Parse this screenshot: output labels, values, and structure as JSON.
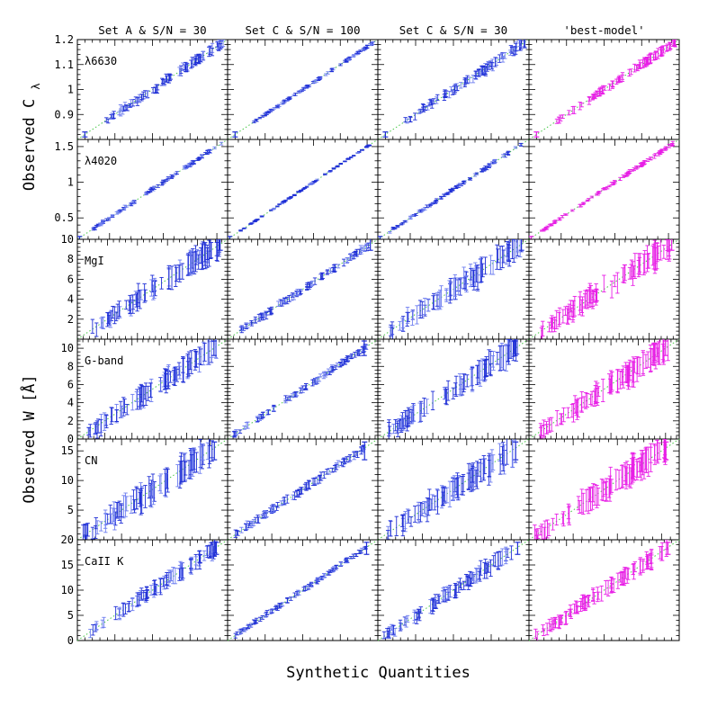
{
  "figure": {
    "column_titles": [
      "Set A & S/N = 30",
      "Set C & S/N = 100",
      "Set C & S/N = 30",
      "'best-model'"
    ],
    "xlabel": "Synthetic Quantities",
    "ylabel_top_main": "Observed C",
    "ylabel_top_sub": "λ",
    "ylabel_bottom": "Observed W [Å]",
    "colors": {
      "sets": "#1f2fd6",
      "best_model": "#e81ee6",
      "one_to_one": "#46c846"
    }
  },
  "chart_data": {
    "type": "scatter",
    "description_of_errorbars": "each point drawn with vertical error bar",
    "columns": [
      "Set A & S/N = 30",
      "Set C & S/N = 100",
      "Set C & S/N = 30",
      "'best-model'"
    ],
    "column_colors": [
      "#1f2fd6",
      "#1f2fd6",
      "#1f2fd6",
      "#e81ee6"
    ],
    "one_to_one_line": true,
    "rows": [
      {
        "name": "λ6630",
        "ylim": [
          0.8,
          1.2
        ],
        "yticks": [
          0.9,
          1,
          1.1,
          1.2
        ],
        "ytick_labels": [
          "0.9",
          "1",
          "1.1",
          "1.2"
        ],
        "x_range": [
          0.87,
          1.19
        ],
        "yerr": [
          0.012,
          0.004,
          0.012,
          0.012
        ],
        "scatter": [
          0.012,
          0.003,
          0.014,
          0.006
        ],
        "outlier": {
          "x": 0.82,
          "y": 0.82,
          "err": 0.01
        }
      },
      {
        "name": "λ4020",
        "ylim": [
          0.2,
          1.6
        ],
        "yticks": [
          0.5,
          1,
          1.5
        ],
        "ytick_labels": [
          "0.5",
          "1",
          "1.5"
        ],
        "x_range": [
          0.3,
          1.55
        ],
        "yerr": [
          0.015,
          0.006,
          0.015,
          0.015
        ],
        "scatter": [
          0.02,
          0.008,
          0.02,
          0.015
        ],
        "outlier": {
          "x": 0.22,
          "y": 0.22,
          "err": 0.02
        }
      },
      {
        "name": "MgI",
        "ylim": [
          0,
          10
        ],
        "yticks": [
          2,
          4,
          6,
          8,
          10
        ],
        "ytick_labels": [
          "2",
          "4",
          "6",
          "8",
          "10"
        ],
        "x_range": [
          0.8,
          9.5
        ],
        "yerr": [
          0.8,
          0.25,
          0.8,
          0.8
        ],
        "scatter": [
          0.5,
          0.2,
          0.6,
          0.5
        ],
        "outlier": {
          "x": 9.5,
          "y": 9.6,
          "err": 0.7
        }
      },
      {
        "name": "G-band",
        "ylim": [
          0,
          11
        ],
        "yticks": [
          0,
          2,
          4,
          6,
          8,
          10
        ],
        "ytick_labels": [
          "0",
          "2",
          "4",
          "6",
          "8",
          "10"
        ],
        "x_range": [
          0.4,
          10.2
        ],
        "yerr": [
          0.9,
          0.25,
          0.9,
          0.9
        ],
        "scatter": [
          0.5,
          0.2,
          0.6,
          0.5
        ],
        "outlier": {
          "x": 10.0,
          "y": 10.0,
          "err": 0.8
        }
      },
      {
        "name": "CN",
        "ylim": [
          0,
          17
        ],
        "yticks": [
          5,
          10,
          15
        ],
        "ytick_labels": [
          "5",
          "10",
          "15"
        ],
        "x_range": [
          0.5,
          15.5
        ],
        "yerr": [
          1.6,
          0.5,
          1.6,
          1.6
        ],
        "scatter": [
          1.0,
          0.3,
          1.1,
          1.0
        ],
        "outlier": {
          "x": 15.5,
          "y": 15.0,
          "err": 1.5
        }
      },
      {
        "name": "CaII K",
        "ylim": [
          0,
          20
        ],
        "yticks": [
          0,
          5,
          10,
          15,
          20
        ],
        "ytick_labels": [
          "0",
          "5",
          "10",
          "15",
          "20"
        ],
        "x_range": [
          0.8,
          18.5
        ],
        "yerr": [
          1.1,
          0.35,
          1.1,
          1.1
        ],
        "scatter": [
          0.7,
          0.25,
          0.8,
          0.7
        ],
        "outlier": {
          "x": 18.5,
          "y": 18.3,
          "err": 1.2
        }
      }
    ]
  }
}
